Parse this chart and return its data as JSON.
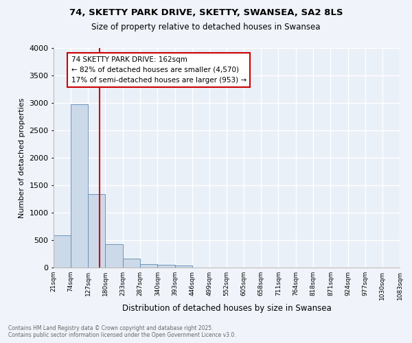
{
  "title": "74, SKETTY PARK DRIVE, SKETTY, SWANSEA, SA2 8LS",
  "subtitle": "Size of property relative to detached houses in Swansea",
  "xlabel": "Distribution of detached houses by size in Swansea",
  "ylabel": "Number of detached properties",
  "bar_color": "#ccd9e8",
  "bar_edge_color": "#5b8ab5",
  "background_color": "#eaf0f8",
  "grid_color": "#ffffff",
  "bin_edges": [
    21,
    74,
    127,
    180,
    233,
    287,
    340,
    393,
    446,
    499,
    552,
    605,
    658,
    711,
    764,
    818,
    871,
    924,
    977,
    1030,
    1083
  ],
  "bin_labels": [
    "21sqm",
    "74sqm",
    "127sqm",
    "180sqm",
    "233sqm",
    "287sqm",
    "340sqm",
    "393sqm",
    "446sqm",
    "499sqm",
    "552sqm",
    "605sqm",
    "658sqm",
    "711sqm",
    "764sqm",
    "818sqm",
    "871sqm",
    "924sqm",
    "977sqm",
    "1030sqm",
    "1083sqm"
  ],
  "bar_heights": [
    590,
    2970,
    1340,
    420,
    160,
    65,
    45,
    40,
    0,
    0,
    0,
    0,
    0,
    0,
    0,
    0,
    0,
    0,
    0,
    0
  ],
  "property_line_x": 162,
  "ylim": [
    0,
    4000
  ],
  "yticks": [
    0,
    500,
    1000,
    1500,
    2000,
    2500,
    3000,
    3500,
    4000
  ],
  "annotation_title": "74 SKETTY PARK DRIVE: 162sqm",
  "annotation_line1": "← 82% of detached houses are smaller (4,570)",
  "annotation_line2": "17% of semi-detached houses are larger (953) →",
  "annotation_box_color": "#ffffff",
  "annotation_border_color": "#cc0000",
  "red_line_color": "#cc0000",
  "footnote1": "Contains HM Land Registry data © Crown copyright and database right 2025.",
  "footnote2": "Contains public sector information licensed under the Open Government Licence v3.0."
}
